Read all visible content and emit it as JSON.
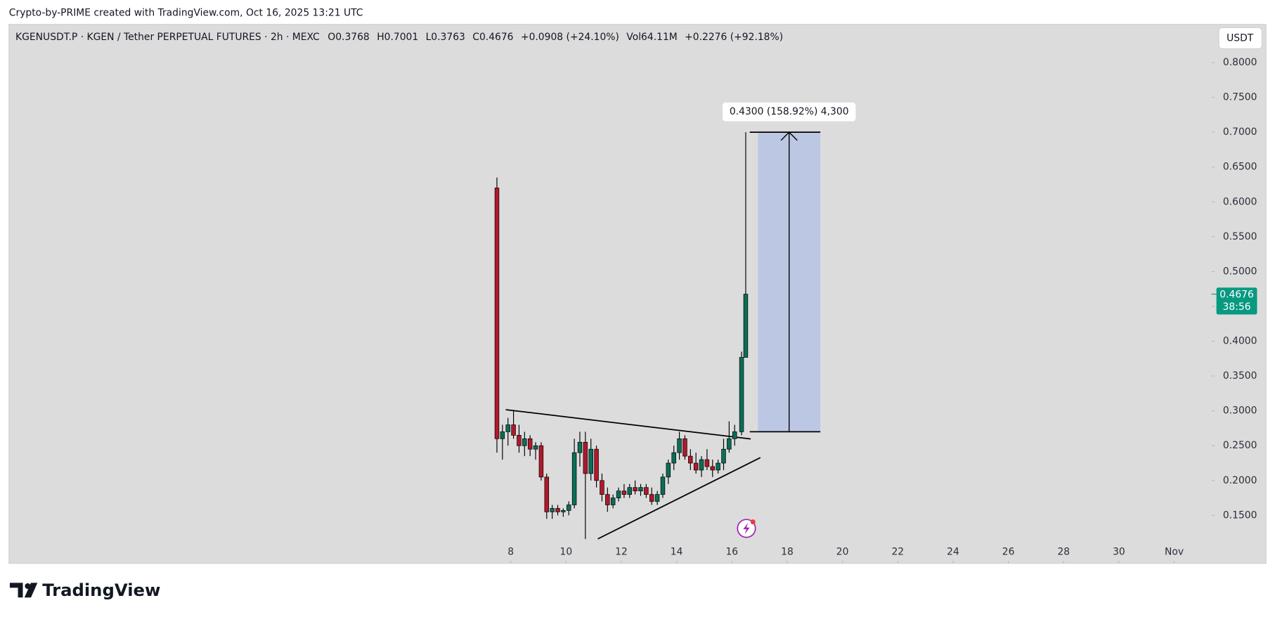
{
  "chart_data": {
    "type": "candlestick",
    "attribution": "Crypto-by-PRIME created with TradingView.com, Oct 16, 2025 13:21 UTC",
    "title": "KGENUSDT.P · KGEN / Tether PERPETUAL FUTURES · 2h · MEXC",
    "ohlc_text": [
      "O0.3768",
      "H0.7001",
      "L0.3763",
      "C0.4676",
      "+0.0908 (+24.10%)"
    ],
    "volume_text": "Vol64.11M",
    "change_text": "+0.2276 (+92.18%)",
    "currency": "USDT",
    "countdown": "38:56",
    "brand": "TradingView",
    "up_color": "#0b6e57",
    "down_color": "#b2182b",
    "x": [
      7.5,
      7.7,
      7.9,
      8.1,
      8.3,
      8.5,
      8.7,
      8.9,
      9.1,
      9.3,
      9.5,
      9.7,
      9.9,
      10.1,
      10.3,
      10.5,
      10.7,
      10.9,
      11.1,
      11.3,
      11.5,
      11.7,
      11.9,
      12.1,
      12.3,
      12.5,
      12.7,
      12.9,
      13.1,
      13.3,
      13.5,
      13.7,
      13.9,
      14.1,
      14.3,
      14.5,
      14.7,
      14.9,
      15.1,
      15.3,
      15.5,
      15.7,
      15.9,
      16.1,
      16.35,
      16.5
    ],
    "open": [
      0.62,
      0.26,
      0.27,
      0.28,
      0.265,
      0.25,
      0.26,
      0.245,
      0.25,
      0.205,
      0.155,
      0.16,
      0.155,
      0.157,
      0.165,
      0.24,
      0.255,
      0.21,
      0.245,
      0.2,
      0.18,
      0.165,
      0.175,
      0.185,
      0.18,
      0.19,
      0.185,
      0.19,
      0.18,
      0.17,
      0.18,
      0.205,
      0.225,
      0.24,
      0.26,
      0.235,
      0.225,
      0.215,
      0.23,
      0.22,
      0.215,
      0.225,
      0.245,
      0.26,
      0.27,
      0.3768
    ],
    "high": [
      0.635,
      0.28,
      0.29,
      0.3,
      0.28,
      0.27,
      0.265,
      0.255,
      0.255,
      0.21,
      0.165,
      0.165,
      0.16,
      0.17,
      0.26,
      0.27,
      0.27,
      0.26,
      0.25,
      0.21,
      0.19,
      0.18,
      0.19,
      0.195,
      0.195,
      0.2,
      0.195,
      0.195,
      0.19,
      0.185,
      0.21,
      0.23,
      0.25,
      0.27,
      0.265,
      0.245,
      0.24,
      0.235,
      0.245,
      0.23,
      0.23,
      0.26,
      0.285,
      0.28,
      0.385,
      0.7001
    ],
    "low": [
      0.24,
      0.23,
      0.25,
      0.26,
      0.24,
      0.235,
      0.235,
      0.23,
      0.2,
      0.145,
      0.145,
      0.15,
      0.148,
      0.15,
      0.16,
      0.22,
      0.116,
      0.2,
      0.19,
      0.17,
      0.155,
      0.16,
      0.17,
      0.175,
      0.175,
      0.18,
      0.178,
      0.175,
      0.165,
      0.165,
      0.175,
      0.195,
      0.215,
      0.23,
      0.23,
      0.215,
      0.21,
      0.205,
      0.215,
      0.205,
      0.21,
      0.215,
      0.24,
      0.25,
      0.265,
      0.3763
    ],
    "close": [
      0.26,
      0.27,
      0.28,
      0.265,
      0.25,
      0.26,
      0.245,
      0.25,
      0.205,
      0.155,
      0.16,
      0.155,
      0.157,
      0.165,
      0.24,
      0.255,
      0.21,
      0.245,
      0.2,
      0.18,
      0.165,
      0.175,
      0.185,
      0.18,
      0.19,
      0.185,
      0.19,
      0.18,
      0.17,
      0.18,
      0.205,
      0.225,
      0.24,
      0.26,
      0.235,
      0.225,
      0.215,
      0.23,
      0.22,
      0.215,
      0.225,
      0.245,
      0.26,
      0.27,
      0.3768,
      0.4676
    ],
    "xlim": [
      -10.15,
      33.35
    ],
    "xticks": [
      8,
      10,
      12,
      14,
      16,
      18,
      20,
      22,
      24,
      26,
      28,
      30,
      {
        "value": 32,
        "label": "Nov"
      }
    ],
    "ylim": [
      0.0811,
      0.8548
    ],
    "yticks": [
      {
        "value": 0.15,
        "label": "0.1500"
      },
      {
        "value": 0.2,
        "label": "0.2000"
      },
      {
        "value": 0.25,
        "label": "0.2500"
      },
      {
        "value": 0.3,
        "label": "0.3000"
      },
      {
        "value": 0.35,
        "label": "0.3500"
      },
      {
        "value": 0.4,
        "label": "0.4000"
      },
      {
        "value": 0.45,
        "label": "0.4500"
      },
      {
        "value": 0.5,
        "label": "0.5000"
      },
      {
        "value": 0.55,
        "label": "0.5500"
      },
      {
        "value": 0.6,
        "label": "0.6000"
      },
      {
        "value": 0.65,
        "label": "0.6500"
      },
      {
        "value": 0.7,
        "label": "0.7000"
      },
      {
        "value": 0.75,
        "label": "0.7500"
      },
      {
        "value": 0.8,
        "label": "0.8000"
      }
    ],
    "trendlines": [
      {
        "x": [
          7.82,
          16.68
        ],
        "y": [
          0.3017,
          0.2597
        ]
      },
      {
        "x": [
          11.15,
          17.03
        ],
        "y": [
          0.1162,
          0.2329
        ]
      }
    ],
    "measure": {
      "label": "0.4300 (158.92%) 4,300",
      "x": [
        16.94,
        19.2
      ],
      "y": [
        0.27,
        0.7
      ],
      "color": "#bcc7e3"
    }
  }
}
